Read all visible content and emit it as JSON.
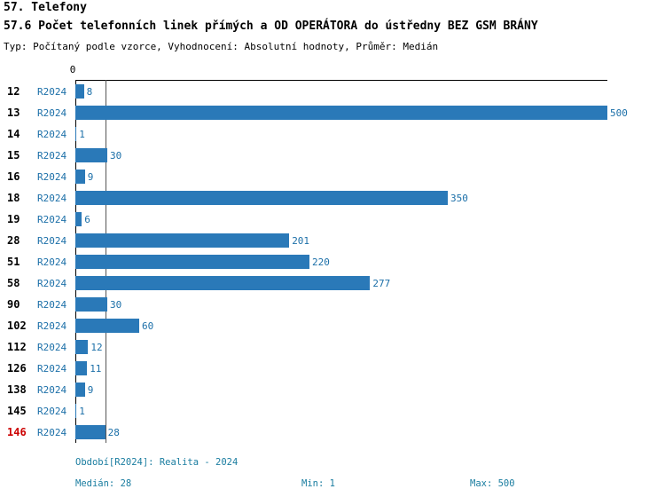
{
  "header": {
    "title": "57. Telefony",
    "subtitle": "57.6 Počet telefonních linek přímých a OD OPERÁTORA do ústředny BEZ GSM BRÁNY",
    "meta": "Typ: Počítaný podle vzorce, Vyhodnocení: Absolutní hodnoty, Průměr: Medián"
  },
  "chart_data": {
    "type": "bar",
    "orientation": "horizontal",
    "title": "57.6 Počet telefonních linek přímých a OD OPERÁTORA do ústředny BEZ GSM BRÁNY",
    "categories": [
      "12",
      "13",
      "14",
      "15",
      "16",
      "18",
      "19",
      "28",
      "51",
      "58",
      "90",
      "102",
      "112",
      "126",
      "138",
      "145",
      "146"
    ],
    "series": [
      {
        "name": "R2024",
        "values": [
          8,
          500,
          1,
          30,
          9,
          350,
          6,
          201,
          220,
          277,
          30,
          60,
          12,
          11,
          9,
          1,
          28
        ]
      }
    ],
    "highlight_category": "146",
    "x_axis": {
      "origin_label": "0",
      "min": 0,
      "max": 500
    },
    "median_line": 28,
    "grid": false,
    "legend_position": "none"
  },
  "footer": {
    "period": "Období[R2024]: Realita - 2024",
    "median": "Medián: 28",
    "min": "Min: 1",
    "max": "Max: 500"
  },
  "colors": {
    "bar": "#2a79b8",
    "label_blue": "#1b6fa8",
    "footer_text": "#1a7da0",
    "highlight_red": "#cc0000",
    "axis": "#000000"
  }
}
